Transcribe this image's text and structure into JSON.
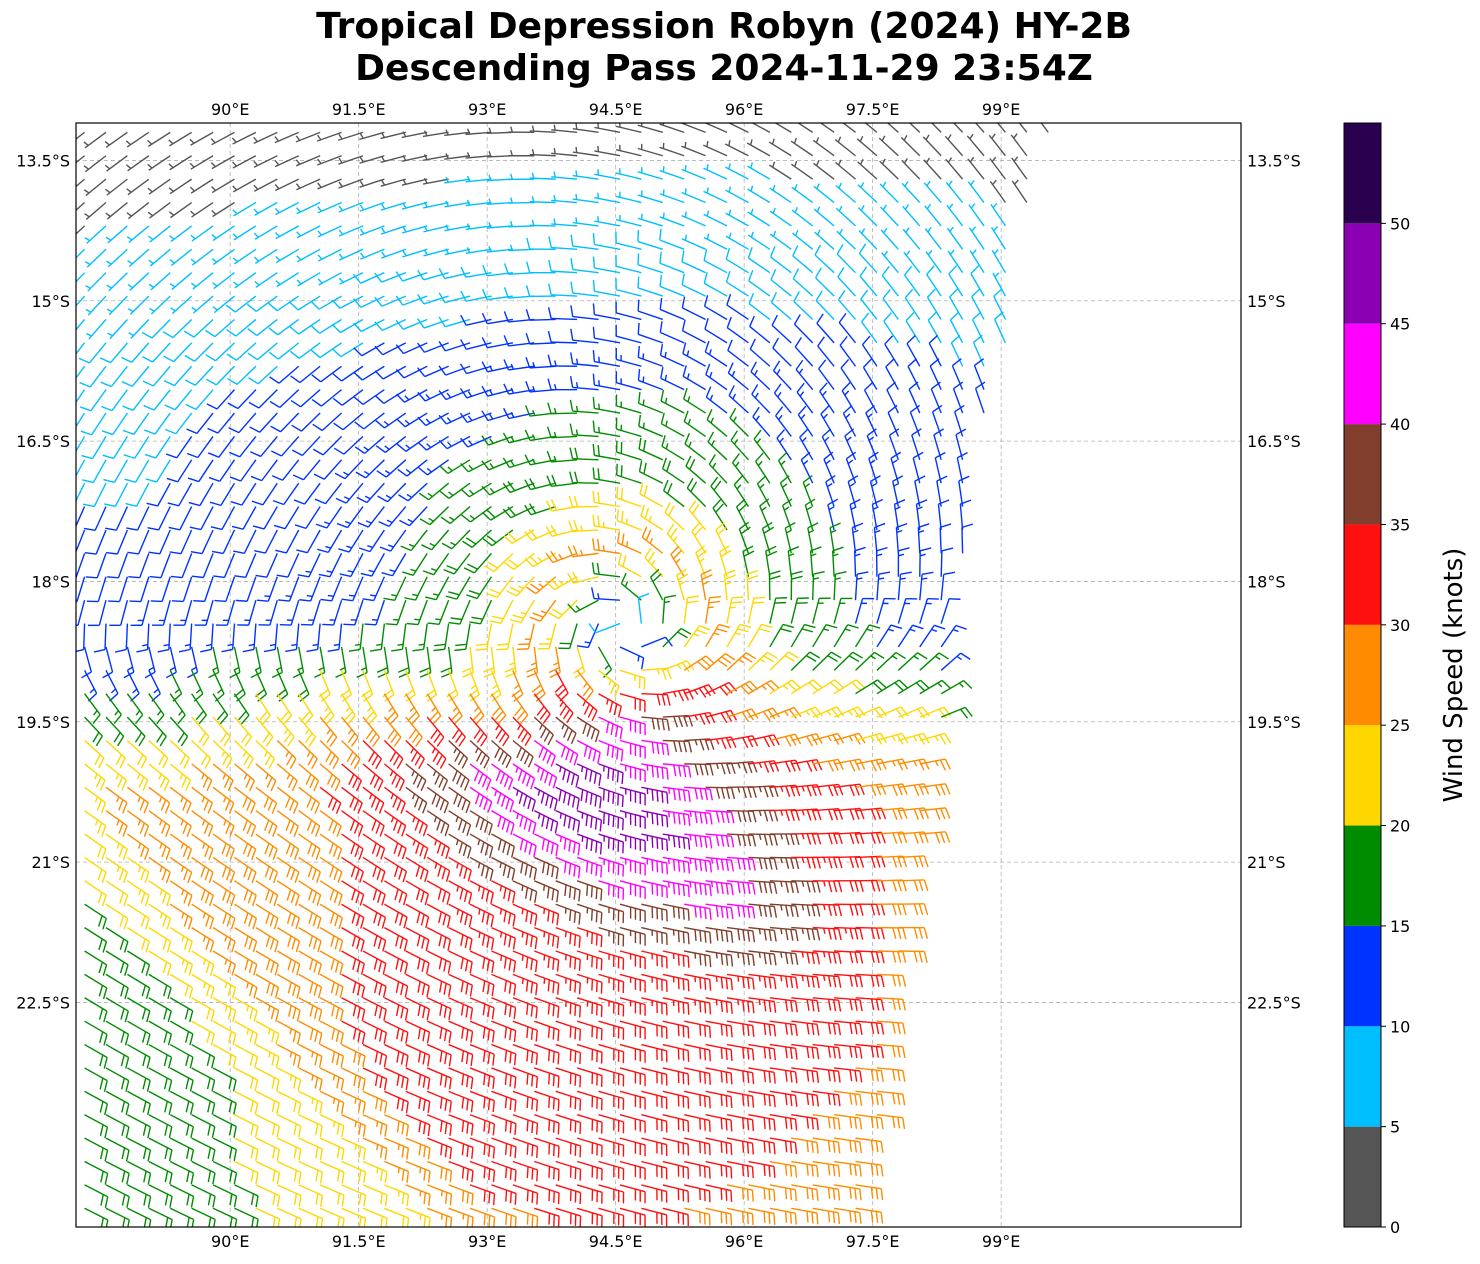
{
  "title_line1": "Tropical Depression Robyn (2024) HY-2B",
  "title_line2": "Descending Pass 2024-11-29 23:54Z",
  "map": {
    "lon_range": [
      88.2,
      101.8
    ],
    "lat_range": [
      -24.9,
      -13.1
    ],
    "lon_ticks": [
      90,
      91.5,
      93,
      94.5,
      96,
      97.5,
      99
    ],
    "lon_tick_labels": [
      "90°E",
      "91.5°E",
      "93°E",
      "94.5°E",
      "96°E",
      "97.5°E",
      "99°E"
    ],
    "lat_ticks": [
      -13.5,
      -15,
      -16.5,
      -18,
      -19.5,
      -21,
      -22.5
    ],
    "lat_tick_labels": [
      "13.5°S",
      "15°S",
      "16.5°S",
      "18°S",
      "19.5°S",
      "21°S",
      "22.5°S"
    ],
    "gridlines": true
  },
  "storm_center": {
    "lon": 94.6,
    "lat": -18.55
  },
  "swath_east_edge": [
    [
      -13.1,
      99.6
    ],
    [
      -14.6,
      99.1
    ],
    [
      -15.0,
      99.2
    ],
    [
      -16.2,
      98.8
    ],
    [
      -19.5,
      98.3
    ],
    [
      -20.5,
      98.1
    ],
    [
      -22.0,
      97.8
    ],
    [
      -24.9,
      97.4
    ]
  ],
  "colorbar": {
    "label": "Wind Speed (knots)",
    "bounds": [
      0,
      5,
      10,
      15,
      20,
      25,
      30,
      35,
      40,
      45,
      50,
      55
    ],
    "tick_values": [
      0,
      5,
      10,
      15,
      20,
      25,
      30,
      35,
      40,
      45,
      50
    ],
    "tick_labels": [
      "0",
      "5",
      "10",
      "15",
      "20",
      "25",
      "30",
      "35",
      "40",
      "45",
      "50"
    ],
    "colors": [
      "#555555",
      "#00bfff",
      "#0033ff",
      "#008c00",
      "#ffd700",
      "#ff8c00",
      "#ff1010",
      "#823e2c",
      "#ff00ff",
      "#8c00b4",
      "#2a004e"
    ]
  }
}
